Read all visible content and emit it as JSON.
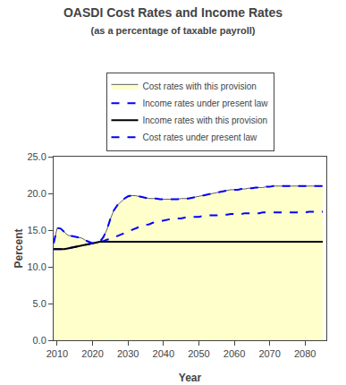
{
  "chart_data": {
    "type": "line",
    "title": "OASDI Cost Rates and Income Rates",
    "subtitle": "(as a percentage of taxable payroll)",
    "xlabel": "Year",
    "ylabel": "Percent",
    "x": [
      2009,
      2010,
      2011,
      2012,
      2013,
      2014,
      2015,
      2016,
      2017,
      2018,
      2019,
      2020,
      2021,
      2022,
      2023,
      2024,
      2025,
      2026,
      2027,
      2028,
      2029,
      2030,
      2031,
      2032,
      2033,
      2034,
      2035,
      2036,
      2037,
      2038,
      2039,
      2040,
      2041,
      2042,
      2043,
      2044,
      2045,
      2046,
      2047,
      2048,
      2049,
      2050,
      2051,
      2052,
      2053,
      2054,
      2055,
      2056,
      2057,
      2058,
      2059,
      2060,
      2061,
      2062,
      2063,
      2064,
      2065,
      2066,
      2067,
      2068,
      2069,
      2070,
      2071,
      2072,
      2073,
      2074,
      2075,
      2076,
      2077,
      2078,
      2079,
      2080,
      2081,
      2082,
      2083,
      2084,
      2085
    ],
    "series": [
      {
        "name": "Cost rates with this provision",
        "type": "area",
        "color": "#ffffcc",
        "line_style": "solid",
        "values": [
          13.2,
          15.3,
          15.2,
          14.7,
          14.3,
          14.2,
          14.1,
          14.0,
          13.9,
          13.6,
          13.4,
          13.2,
          13.2,
          13.4,
          14.0,
          15.0,
          16.5,
          17.7,
          18.4,
          18.9,
          19.3,
          19.6,
          19.7,
          19.7,
          19.6,
          19.5,
          19.4,
          19.3,
          19.3,
          19.3,
          19.2,
          19.2,
          19.2,
          19.2,
          19.2,
          19.2,
          19.3,
          19.3,
          19.3,
          19.4,
          19.5,
          19.6,
          19.7,
          19.8,
          19.9,
          20.0,
          20.1,
          20.2,
          20.3,
          20.4,
          20.5,
          20.5,
          20.5,
          20.6,
          20.6,
          20.7,
          20.7,
          20.8,
          20.8,
          20.8,
          20.9,
          20.9,
          21.0,
          21.0,
          21.0,
          21.0,
          21.0,
          21.0,
          21.0,
          21.0,
          21.0,
          21.0,
          21.0,
          21.0,
          21.0,
          21.0,
          21.0
        ]
      },
      {
        "name": "Income rates under present law",
        "type": "line",
        "color": "blue",
        "line_style": "dashed",
        "values": [
          12.4,
          12.4,
          12.4,
          12.4,
          12.5,
          12.6,
          12.7,
          12.8,
          12.9,
          13.0,
          13.1,
          13.2,
          13.3,
          13.4,
          13.5,
          13.7,
          13.8,
          14.0,
          14.2,
          14.4,
          14.6,
          14.8,
          15.0,
          15.2,
          15.4,
          15.5,
          15.7,
          15.8,
          16.0,
          16.1,
          16.2,
          16.3,
          16.4,
          16.5,
          16.5,
          16.6,
          16.6,
          16.7,
          16.7,
          16.8,
          16.8,
          16.8,
          16.9,
          16.9,
          17.0,
          17.0,
          17.0,
          17.1,
          17.1,
          17.1,
          17.2,
          17.2,
          17.2,
          17.2,
          17.3,
          17.3,
          17.3,
          17.3,
          17.3,
          17.4,
          17.4,
          17.4,
          17.4,
          17.4,
          17.4,
          17.4,
          17.4,
          17.4,
          17.4,
          17.4,
          17.4,
          17.4,
          17.5,
          17.5,
          17.5,
          17.5,
          17.5
        ]
      },
      {
        "name": "Income rates with this provision",
        "type": "line",
        "color": "black",
        "line_style": "solid",
        "values": [
          12.4,
          12.4,
          12.4,
          12.4,
          12.5,
          12.6,
          12.7,
          12.8,
          12.9,
          13.0,
          13.1,
          13.2,
          13.3,
          13.4,
          13.4,
          13.4,
          13.4,
          13.4,
          13.4,
          13.4,
          13.4,
          13.4,
          13.4,
          13.4,
          13.4,
          13.4,
          13.4,
          13.4,
          13.4,
          13.4,
          13.4,
          13.4,
          13.4,
          13.4,
          13.4,
          13.4,
          13.4,
          13.4,
          13.4,
          13.4,
          13.4,
          13.4,
          13.4,
          13.4,
          13.4,
          13.4,
          13.4,
          13.4,
          13.4,
          13.4,
          13.4,
          13.4,
          13.4,
          13.4,
          13.4,
          13.4,
          13.4,
          13.4,
          13.4,
          13.4,
          13.4,
          13.4,
          13.4,
          13.4,
          13.4,
          13.4,
          13.4,
          13.4,
          13.4,
          13.4,
          13.4,
          13.4,
          13.4,
          13.4,
          13.4,
          13.4,
          13.4
        ]
      },
      {
        "name": "Cost rates under present law",
        "type": "line",
        "color": "blue",
        "line_style": "dashed",
        "values": [
          13.2,
          15.3,
          15.2,
          14.7,
          14.3,
          14.2,
          14.1,
          14.0,
          13.9,
          13.6,
          13.4,
          13.2,
          13.2,
          13.4,
          14.0,
          15.0,
          16.5,
          17.7,
          18.4,
          18.9,
          19.3,
          19.6,
          19.7,
          19.7,
          19.6,
          19.5,
          19.4,
          19.3,
          19.3,
          19.3,
          19.2,
          19.2,
          19.2,
          19.2,
          19.2,
          19.2,
          19.3,
          19.3,
          19.3,
          19.4,
          19.5,
          19.6,
          19.7,
          19.8,
          19.9,
          20.0,
          20.1,
          20.2,
          20.3,
          20.4,
          20.5,
          20.5,
          20.5,
          20.6,
          20.6,
          20.7,
          20.7,
          20.8,
          20.8,
          20.8,
          20.9,
          20.9,
          21.0,
          21.0,
          21.0,
          21.0,
          21.0,
          21.0,
          21.0,
          21.0,
          21.0,
          21.0,
          21.0,
          21.0,
          21.0,
          21.0,
          21.0
        ]
      }
    ],
    "xlim": [
      2009,
      2086
    ],
    "xticks": [
      2010,
      2020,
      2030,
      2040,
      2050,
      2060,
      2070,
      2080
    ],
    "ylim": [
      0,
      25
    ],
    "yticks": [
      {
        "value": 0,
        "label": "0.0"
      },
      {
        "value": 5,
        "label": "5.0"
      },
      {
        "value": 10,
        "label": "10.0"
      },
      {
        "value": 15,
        "label": "15.0"
      },
      {
        "value": 20,
        "label": "20.0"
      },
      {
        "value": 25,
        "label": "25.0"
      }
    ],
    "grid": false
  }
}
